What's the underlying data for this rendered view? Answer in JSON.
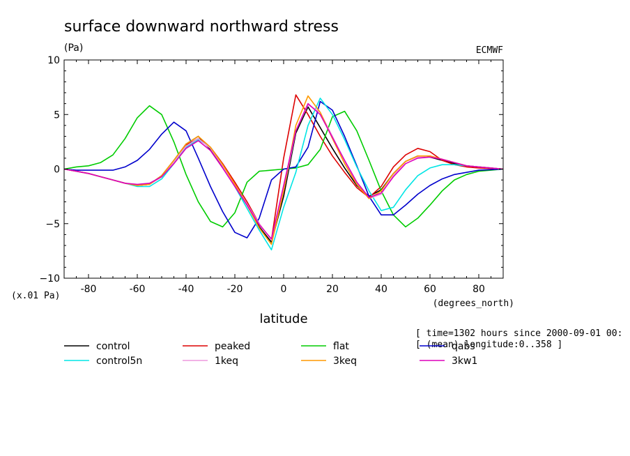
{
  "chart_data": {
    "type": "line",
    "title": "surface downward northward stress",
    "units": "(Pa)",
    "source": "ECMWF",
    "scale_note": "(x.01 Pa)",
    "xlabel": "latitude",
    "xunits": "(degrees_north)",
    "xlim": [
      -90,
      90
    ],
    "ylim": [
      -10,
      10
    ],
    "xticks": [
      "-80",
      "-60",
      "-40",
      "-20",
      "0",
      "20",
      "40",
      "60",
      "80"
    ],
    "yticks": [
      "10",
      "5",
      "0",
      "−5",
      "−10"
    ],
    "info_line1": "[ time=1302 hours since 2000-09-01 00:",
    "info_line2": "[ (mean) longitude:0..358 ]",
    "grid": false,
    "x": [
      -90,
      -85,
      -80,
      -75,
      -70,
      -65,
      -60,
      -55,
      -50,
      -45,
      -40,
      -35,
      -30,
      -25,
      -20,
      -15,
      -10,
      -5,
      0,
      5,
      10,
      15,
      20,
      25,
      30,
      35,
      40,
      45,
      50,
      55,
      60,
      65,
      70,
      75,
      80,
      85,
      90
    ],
    "series": [
      {
        "name": "control",
        "color": "#000000",
        "values": [
          0,
          -0.2,
          -0.4,
          -0.7,
          -1.0,
          -1.3,
          -1.5,
          -1.4,
          -0.6,
          0.8,
          2.3,
          3.0,
          1.8,
          0.2,
          -1.5,
          -3.3,
          -5.3,
          -6.7,
          -2.5,
          3.3,
          5.7,
          3.8,
          1.9,
          0.1,
          -1.5,
          -2.5,
          -1.9,
          -0.4,
          0.7,
          1.2,
          1.1,
          0.8,
          0.5,
          0.3,
          0.2,
          0.1,
          0
        ]
      },
      {
        "name": "peaked",
        "color": "#dd0000",
        "values": [
          0,
          -0.2,
          -0.4,
          -0.7,
          -1.0,
          -1.3,
          -1.5,
          -1.4,
          -0.7,
          0.7,
          2.2,
          2.8,
          2.0,
          0.5,
          -1.2,
          -3.0,
          -5.0,
          -6.5,
          1.0,
          6.8,
          5.0,
          3.0,
          1.2,
          -0.3,
          -1.7,
          -2.6,
          -1.6,
          0.2,
          1.3,
          1.9,
          1.6,
          0.8,
          0.4,
          0.2,
          0.1,
          0.05,
          0
        ]
      },
      {
        "name": "flat",
        "color": "#00cc00",
        "values": [
          0,
          0.2,
          0.3,
          0.6,
          1.3,
          2.8,
          4.7,
          5.8,
          5.0,
          2.5,
          -0.5,
          -3.0,
          -4.8,
          -5.3,
          -4.0,
          -1.2,
          -0.2,
          -0.1,
          0,
          0.1,
          0.4,
          1.8,
          4.8,
          5.3,
          3.5,
          0.8,
          -2.0,
          -4.2,
          -5.3,
          -4.5,
          -3.3,
          -2.0,
          -1.0,
          -0.5,
          -0.2,
          -0.1,
          0
        ]
      },
      {
        "name": "qabs",
        "color": "#0000cc",
        "values": [
          0,
          -0.1,
          -0.1,
          -0.1,
          -0.1,
          0.2,
          0.8,
          1.8,
          3.2,
          4.3,
          3.5,
          1.0,
          -1.6,
          -3.9,
          -5.8,
          -6.3,
          -4.5,
          -1.0,
          0,
          0.2,
          2.0,
          6.2,
          5.4,
          3.0,
          0.3,
          -2.5,
          -4.2,
          -4.2,
          -3.3,
          -2.3,
          -1.5,
          -0.9,
          -0.5,
          -0.3,
          -0.1,
          -0.05,
          0
        ]
      },
      {
        "name": "control5n",
        "color": "#00e5e5",
        "values": [
          0,
          -0.2,
          -0.4,
          -0.7,
          -1.0,
          -1.3,
          -1.6,
          -1.6,
          -0.9,
          0.5,
          2.0,
          2.7,
          2.0,
          0.3,
          -1.6,
          -3.6,
          -5.6,
          -7.4,
          -3.5,
          -0.3,
          4.0,
          6.5,
          5.0,
          2.7,
          0.2,
          -2.0,
          -3.8,
          -3.5,
          -1.9,
          -0.6,
          0.1,
          0.4,
          0.4,
          0.3,
          0.2,
          0.1,
          0
        ]
      },
      {
        "name": "1keq",
        "color": "#ee99dd",
        "values": [
          0,
          -0.2,
          -0.4,
          -0.7,
          -1.0,
          -1.3,
          -1.5,
          -1.4,
          -0.7,
          0.7,
          2.1,
          2.8,
          1.9,
          0.3,
          -1.5,
          -3.2,
          -5.0,
          -6.5,
          -2.0,
          3.5,
          5.9,
          5.2,
          3.0,
          0.7,
          -1.3,
          -2.7,
          -2.3,
          -0.6,
          0.7,
          1.1,
          1.2,
          0.9,
          0.6,
          0.3,
          0.2,
          0.1,
          0
        ]
      },
      {
        "name": "3keq",
        "color": "#ff9900",
        "values": [
          0,
          -0.2,
          -0.4,
          -0.7,
          -1.0,
          -1.3,
          -1.5,
          -1.4,
          -0.6,
          0.8,
          2.3,
          3.0,
          2.0,
          0.4,
          -1.4,
          -3.3,
          -5.4,
          -6.9,
          -2.0,
          4.0,
          6.7,
          5.2,
          2.8,
          0.5,
          -1.4,
          -2.7,
          -2.0,
          -0.4,
          0.7,
          1.2,
          1.2,
          0.9,
          0.6,
          0.3,
          0.2,
          0.1,
          0
        ]
      },
      {
        "name": "3kw1",
        "color": "#dd00bb",
        "values": [
          0,
          -0.2,
          -0.4,
          -0.7,
          -1.0,
          -1.3,
          -1.4,
          -1.3,
          -0.7,
          0.5,
          1.9,
          2.6,
          1.7,
          0.1,
          -1.6,
          -3.3,
          -5.1,
          -6.4,
          -1.5,
          3.5,
          6.0,
          5.0,
          2.9,
          0.8,
          -1.2,
          -2.6,
          -2.2,
          -0.7,
          0.5,
          1.0,
          1.1,
          0.9,
          0.6,
          0.3,
          0.2,
          0.1,
          0
        ]
      }
    ]
  }
}
